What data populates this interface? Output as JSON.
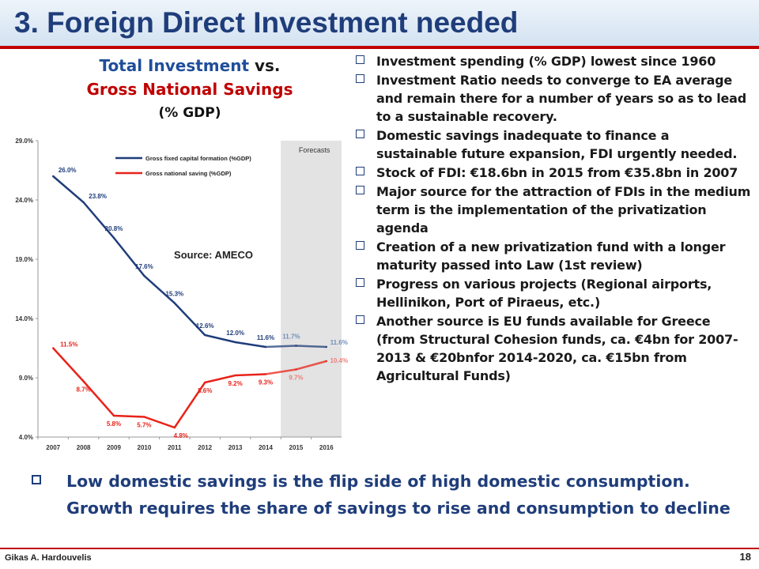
{
  "slide": {
    "title": "3.  Foreign Direct Investment needed",
    "author": "Gikas A. Hardouvelis",
    "page_number": "18"
  },
  "chart_heading": {
    "part1": "Total Investment",
    "part2": " vs.",
    "line2": "Gross National Savings",
    "line3": "(% GDP)"
  },
  "bullets": [
    "Investment spending (% GDP) lowest since 1960",
    "Investment Ratio needs to converge to EA average and remain there for a number of years so as to lead to a sustainable recovery.",
    "Domestic savings inadequate to finance a sustainable future expansion, FDI urgently needed.",
    "Stock of FDI: €18.6bn in 2015 from €35.8bn in 2007",
    "Major source for the attraction of FDIs in the medium term is the implementation of the privatization agenda",
    "Creation of a new privatization fund with a longer maturity passed into Law (1st review)",
    "Progress on various projects (Regional airports, Hellinikon, Port of Piraeus,  etc.)",
    "Another source is EU funds available for Greece (from Structural Cohesion funds,  ca. €4bn for 2007-2013 & €20bnfor 2014-2020, ca. €15bn from Agricultural Funds)"
  ],
  "bottom_bullet": "Low domestic savings is the flip side of high domestic consumption. Growth requires the share of savings to rise and consumption to decline",
  "colors": {
    "title": "#1f3d7a",
    "accent_red": "#c00000",
    "series_blue": "#1f3d7a",
    "series_red": "#e8231a"
  },
  "chart_data": {
    "type": "line",
    "categories": [
      "2007",
      "2008",
      "2009",
      "2010",
      "2011",
      "2012",
      "2013",
      "2014",
      "2015",
      "2016"
    ],
    "series": [
      {
        "name": "Gross fixed capital formation (%GDP)",
        "values": [
          26.0,
          23.8,
          20.8,
          17.6,
          15.3,
          12.6,
          12.0,
          11.6,
          11.7,
          11.6
        ],
        "labels": [
          "26.0%",
          "23.8%",
          "20.8%",
          "17.6%",
          "15.3%",
          "12.6%",
          "12.0%",
          "11.6%",
          "11.7%",
          "11.6%"
        ]
      },
      {
        "name": "Gross national saving (%GDP)",
        "values": [
          11.5,
          8.7,
          5.8,
          5.7,
          4.8,
          8.6,
          9.2,
          9.3,
          9.7,
          10.4
        ],
        "labels": [
          "11.5%",
          "8.7%",
          "5.8%",
          "5.7%",
          "4.8%",
          "8.6%",
          "9.2%",
          "9.3%",
          "9.7%",
          "10.4%"
        ]
      }
    ],
    "ylim": [
      4.0,
      29.0
    ],
    "yticks": [
      "4.0%",
      "9.0%",
      "14.0%",
      "19.0%",
      "24.0%",
      "29.0%"
    ],
    "forecast_label": "Forecasts",
    "forecast_from": "2015",
    "annotation": "Source: AMECO",
    "grid": false,
    "legend": "top-left"
  }
}
